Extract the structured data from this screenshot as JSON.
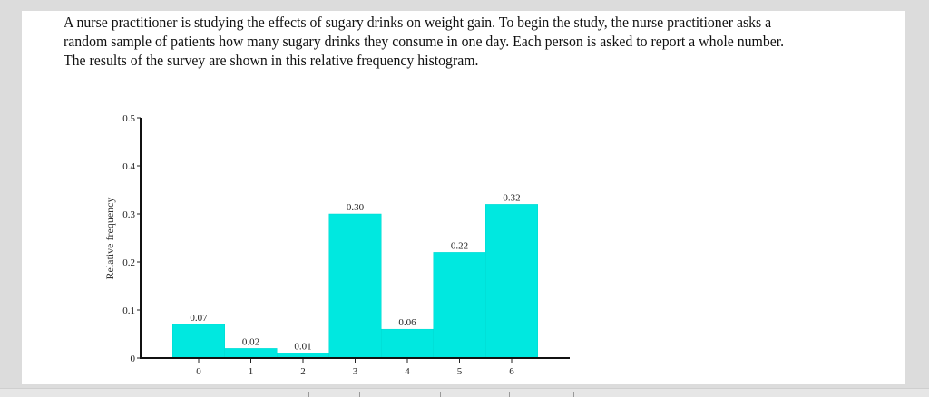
{
  "question": {
    "lines": [
      "A nurse practitioner is studying the effects of sugary drinks on weight gain. To begin the study, the nurse practitioner asks a",
      "random sample of patients how many sugary drinks they consume in one day. Each person is asked to report a whole number.",
      "The results of the survey are shown in this relative frequency histogram."
    ]
  },
  "chart_data": {
    "type": "bar",
    "title": "",
    "xlabel": "",
    "ylabel": "Relative frequency",
    "categories": [
      "0",
      "1",
      "2",
      "3",
      "4",
      "5",
      "6"
    ],
    "values": [
      0.07,
      0.02,
      0.01,
      0.3,
      0.06,
      0.22,
      0.32
    ],
    "data_labels": [
      "0.07",
      "0.02",
      "0.01",
      "0.30",
      "0.06",
      "0.22",
      "0.32"
    ],
    "yticks": [
      "0",
      "0.1",
      "0.2",
      "0.3",
      "0.4",
      "0.5"
    ],
    "ylim": [
      0,
      0.5
    ],
    "grid": false,
    "bar_color": "#00e8e0"
  }
}
